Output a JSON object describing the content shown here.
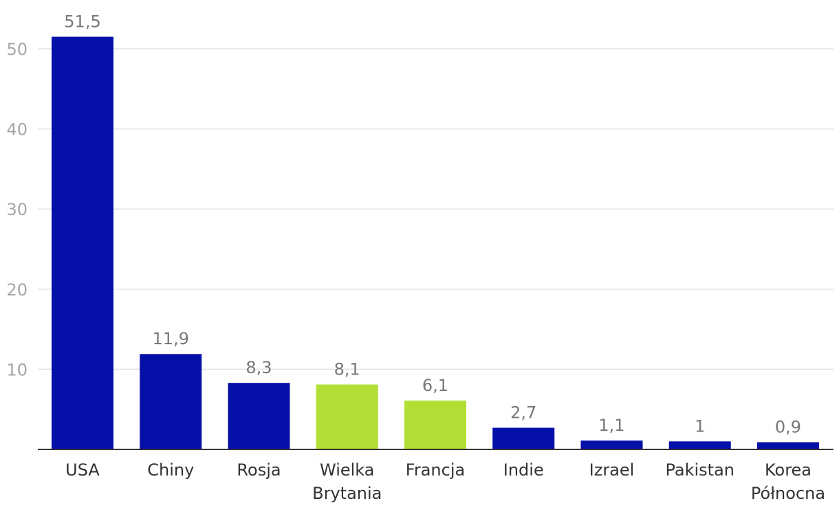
{
  "chart_data": {
    "type": "bar",
    "categories": [
      [
        "USA"
      ],
      [
        "Chiny"
      ],
      [
        "Rosja"
      ],
      [
        "Wielka",
        "Brytania"
      ],
      [
        "Francja"
      ],
      [
        "Indie"
      ],
      [
        "Izrael"
      ],
      [
        "Pakistan"
      ],
      [
        "Korea",
        "Północna"
      ]
    ],
    "values": [
      51.5,
      11.9,
      8.3,
      8.1,
      6.1,
      2.7,
      1.1,
      1,
      0.9
    ],
    "value_labels": [
      "51,5",
      "11,9",
      "8,3",
      "8,1",
      "6,1",
      "2,7",
      "1,1",
      "1",
      "0,9"
    ],
    "bar_colors": [
      "#0410a8",
      "#0410a8",
      "#0410a8",
      "#b2df35",
      "#b2df35",
      "#0410a8",
      "#0410a8",
      "#0410a8",
      "#0410a8"
    ],
    "yticks": [
      10,
      20,
      30,
      40,
      50
    ],
    "ylim": [
      0,
      55
    ],
    "grid": true,
    "title": "",
    "xlabel": "",
    "ylabel": ""
  }
}
